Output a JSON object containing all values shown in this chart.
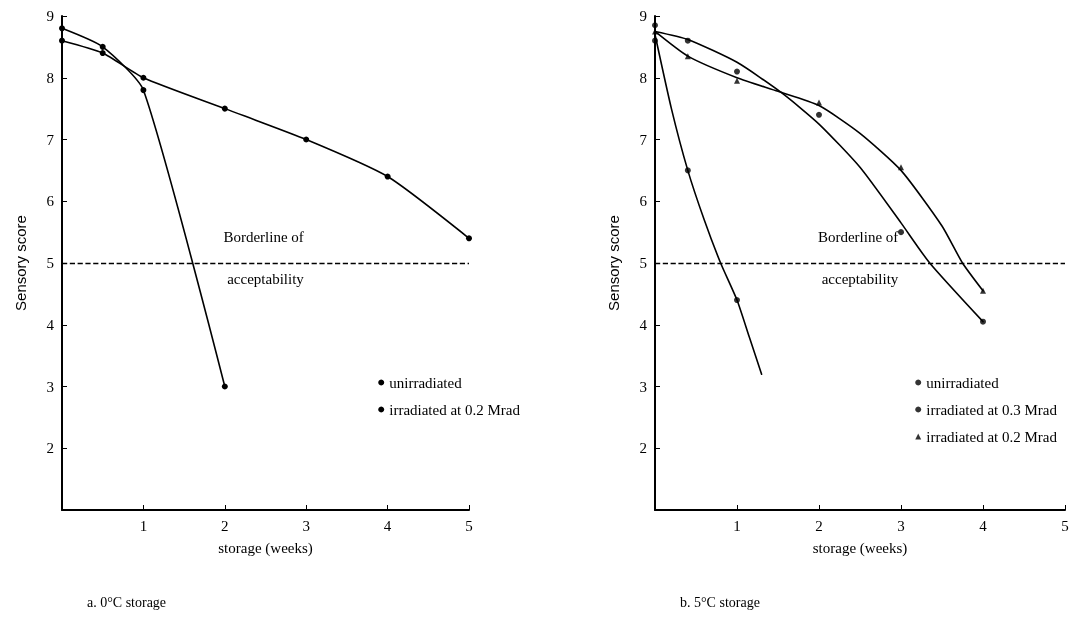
{
  "chart_data": [
    {
      "type": "line",
      "title": "a. 0°C storage",
      "xlabel": "storage (weeks)",
      "ylabel": "Sensory score",
      "xlim": [
        0,
        5
      ],
      "xticks": [
        1,
        2,
        3,
        4,
        5
      ],
      "ylim": [
        1,
        9
      ],
      "yticks": [
        2,
        3,
        4,
        5,
        6,
        7,
        8,
        9
      ],
      "grid": false,
      "legend": "center right",
      "line_style": "solid",
      "ref_lines": [
        {
          "axis": "y",
          "value": 5,
          "label": "Borderline of acceptability",
          "line_style": "dashed",
          "color": "#000000"
        }
      ],
      "series": [
        {
          "name": "unirradiated",
          "color": "#000000",
          "marker": "circle",
          "x": [
            0,
            0.5,
            1,
            2
          ],
          "values": [
            8.8,
            8.5,
            7.8,
            3.0
          ]
        },
        {
          "name": "irradiated at 0.2 Mrad",
          "color": "#000000",
          "marker": "circle",
          "x": [
            0,
            0.5,
            1,
            2,
            3,
            4,
            5
          ],
          "values": [
            8.6,
            8.4,
            8.0,
            7.5,
            7.0,
            6.4,
            5.4
          ]
        }
      ]
    },
    {
      "type": "scatter",
      "title": "b. 5°C storage",
      "xlabel": "storage (weeks)",
      "ylabel": "Sensory score",
      "xlim": [
        0,
        5
      ],
      "xticks": [
        1,
        2,
        3,
        4,
        5
      ],
      "ylim": [
        1,
        9
      ],
      "yticks": [
        2,
        3,
        4,
        5,
        6,
        7,
        8,
        9
      ],
      "grid": false,
      "legend": "center right",
      "ref_lines": [
        {
          "axis": "y",
          "value": 5,
          "label": "Borderline of acceptability",
          "line_style": "dashed",
          "color": "#000000"
        }
      ],
      "series": [
        {
          "name": "unirradiated",
          "color": "#000000",
          "marker": "circle",
          "x": [
            0,
            0.4,
            1
          ],
          "values": [
            8.6,
            6.5,
            4.4
          ]
        },
        {
          "name": "irradiated at 0.3 Mrad",
          "color": "#000000",
          "marker": "circle",
          "x": [
            0,
            0.4,
            1,
            2,
            3,
            4
          ],
          "values": [
            8.85,
            8.6,
            8.1,
            7.4,
            5.5,
            4.05
          ]
        },
        {
          "name": "irradiated at 0.2 Mrad",
          "color": "#000000",
          "marker": "triangle",
          "x": [
            0,
            0.4,
            1,
            2,
            3,
            4
          ],
          "values": [
            8.75,
            8.35,
            7.95,
            7.6,
            6.55,
            4.55
          ]
        },
        {
          "type": "line",
          "color": "#000000",
          "marker": "none",
          "line_style": "solid",
          "x": [
            0,
            0.2,
            0.4,
            0.6,
            0.8,
            1,
            1.15,
            1.3
          ],
          "values": [
            8.7,
            7.5,
            6.5,
            5.7,
            5.0,
            4.4,
            3.8,
            3.2
          ]
        },
        {
          "type": "line",
          "color": "#000000",
          "marker": "none",
          "line_style": "solid",
          "x": [
            0,
            0.4,
            1,
            1.55,
            2,
            2.5,
            3,
            3.35,
            4
          ],
          "values": [
            8.75,
            8.62,
            8.25,
            7.75,
            7.25,
            6.55,
            5.65,
            5.0,
            4.05
          ]
        },
        {
          "type": "line",
          "color": "#000000",
          "marker": "none",
          "line_style": "solid",
          "x": [
            0,
            0.4,
            1,
            1.5,
            2,
            2.5,
            3,
            3.5,
            3.75,
            4
          ],
          "values": [
            8.75,
            8.35,
            8.0,
            7.78,
            7.55,
            7.1,
            6.5,
            5.6,
            5.0,
            4.55
          ]
        }
      ]
    }
  ]
}
